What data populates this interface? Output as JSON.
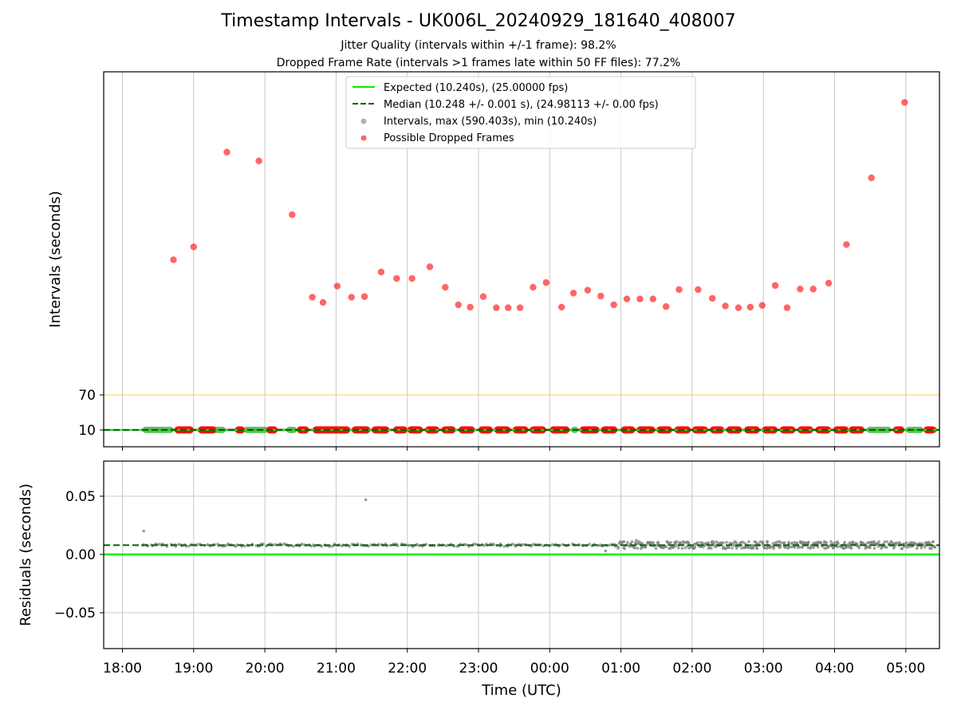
{
  "title": "Timestamp Intervals - UK006L_20240929_181640_408007",
  "subtitle1": "Jitter Quality (intervals within +/-1 frame): 98.2%",
  "subtitle2": "Dropped Frame Rate (intervals >1 frames late within 50 FF files): 77.2%",
  "colors": {
    "expected": "#00ee00",
    "median": "#006400",
    "intervals": "#808080",
    "dropped": "#ff0000",
    "threshold": "#ffd66e",
    "grid": "#c8c8c8"
  },
  "chart_data": [
    {
      "type": "scatter",
      "ylabel": "Intervals (seconds)",
      "xlabel": "",
      "y_ticks": [
        10,
        70
      ],
      "xlim_hours": [
        17.73,
        29.44
      ],
      "ylim_pixels_note": "",
      "x_tick_labels": [
        "18:00",
        "19:00",
        "20:00",
        "21:00",
        "22:00",
        "23:00",
        "00:00",
        "01:00",
        "02:00",
        "03:00",
        "04:00",
        "05:00"
      ],
      "legend": {
        "placement": "upper center",
        "entries": [
          {
            "label": "Expected (10.240s), (25.00000 fps)",
            "kind": "line"
          },
          {
            "label": "Median (10.248 +/- 0.001 s), (24.98113 +/- 0.00 fps)",
            "kind": "dashed"
          },
          {
            "label": "Intervals, max (590.403s), min (10.240s)",
            "kind": "gray-dot"
          },
          {
            "label": "Possible Dropped Frames",
            "kind": "red-dot"
          }
        ]
      },
      "expected_value": 10.24,
      "median_value": 10.248,
      "threshold_value": 70,
      "dropped_points": [
        {
          "x": "18:43",
          "y": 301
        },
        {
          "x": "19:00",
          "y": 323
        },
        {
          "x": "19:28",
          "y": 485
        },
        {
          "x": "19:55",
          "y": 470
        },
        {
          "x": "20:23",
          "y": 378
        },
        {
          "x": "20:40",
          "y": 237
        },
        {
          "x": "20:49",
          "y": 228
        },
        {
          "x": "21:01",
          "y": 256
        },
        {
          "x": "21:13",
          "y": 237
        },
        {
          "x": "21:24",
          "y": 238
        },
        {
          "x": "21:38",
          "y": 280
        },
        {
          "x": "21:51",
          "y": 269
        },
        {
          "x": "22:04",
          "y": 269
        },
        {
          "x": "22:19",
          "y": 289
        },
        {
          "x": "22:32",
          "y": 254
        },
        {
          "x": "22:43",
          "y": 224
        },
        {
          "x": "22:53",
          "y": 220
        },
        {
          "x": "23:04",
          "y": 238
        },
        {
          "x": "23:15",
          "y": 219
        },
        {
          "x": "23:25",
          "y": 219
        },
        {
          "x": "23:35",
          "y": 219
        },
        {
          "x": "23:46",
          "y": 254
        },
        {
          "x": "23:57",
          "y": 262
        },
        {
          "x": "00:10",
          "y": 220
        },
        {
          "x": "00:20",
          "y": 244
        },
        {
          "x": "00:32",
          "y": 249
        },
        {
          "x": "00:43",
          "y": 239
        },
        {
          "x": "00:54",
          "y": 224
        },
        {
          "x": "01:05",
          "y": 234
        },
        {
          "x": "01:16",
          "y": 234
        },
        {
          "x": "01:27",
          "y": 234
        },
        {
          "x": "01:38",
          "y": 221
        },
        {
          "x": "01:49",
          "y": 250
        },
        {
          "x": "02:05",
          "y": 250
        },
        {
          "x": "02:17",
          "y": 235
        },
        {
          "x": "02:28",
          "y": 222
        },
        {
          "x": "02:39",
          "y": 219
        },
        {
          "x": "02:49",
          "y": 220
        },
        {
          "x": "02:59",
          "y": 223
        },
        {
          "x": "03:10",
          "y": 257
        },
        {
          "x": "03:20",
          "y": 219
        },
        {
          "x": "03:31",
          "y": 251
        },
        {
          "x": "03:42",
          "y": 251
        },
        {
          "x": "03:55",
          "y": 261
        },
        {
          "x": "04:10",
          "y": 327
        },
        {
          "x": "04:31",
          "y": 441
        },
        {
          "x": "04:59",
          "y": 570
        }
      ]
    },
    {
      "type": "scatter",
      "ylabel": "Residuals (seconds)",
      "xlabel": "Time (UTC)",
      "ylim": [
        -0.08,
        0.08
      ],
      "y_ticks": [
        -0.05,
        0.0,
        0.05
      ],
      "y_tick_labels": [
        "−0.05",
        "0.00",
        "0.05"
      ],
      "x_tick_labels": [
        "18:00",
        "19:00",
        "20:00",
        "21:00",
        "22:00",
        "23:00",
        "00:00",
        "01:00",
        "02:00",
        "03:00",
        "04:00",
        "05:00"
      ],
      "expected_residual": 0.0,
      "median_residual": 0.008,
      "outliers": [
        {
          "x": "18:18",
          "y": 0.02
        },
        {
          "x": "21:25",
          "y": 0.047
        },
        {
          "x": "01:13",
          "y": 0.012
        },
        {
          "x": "00:47",
          "y": 0.003
        }
      ]
    }
  ]
}
